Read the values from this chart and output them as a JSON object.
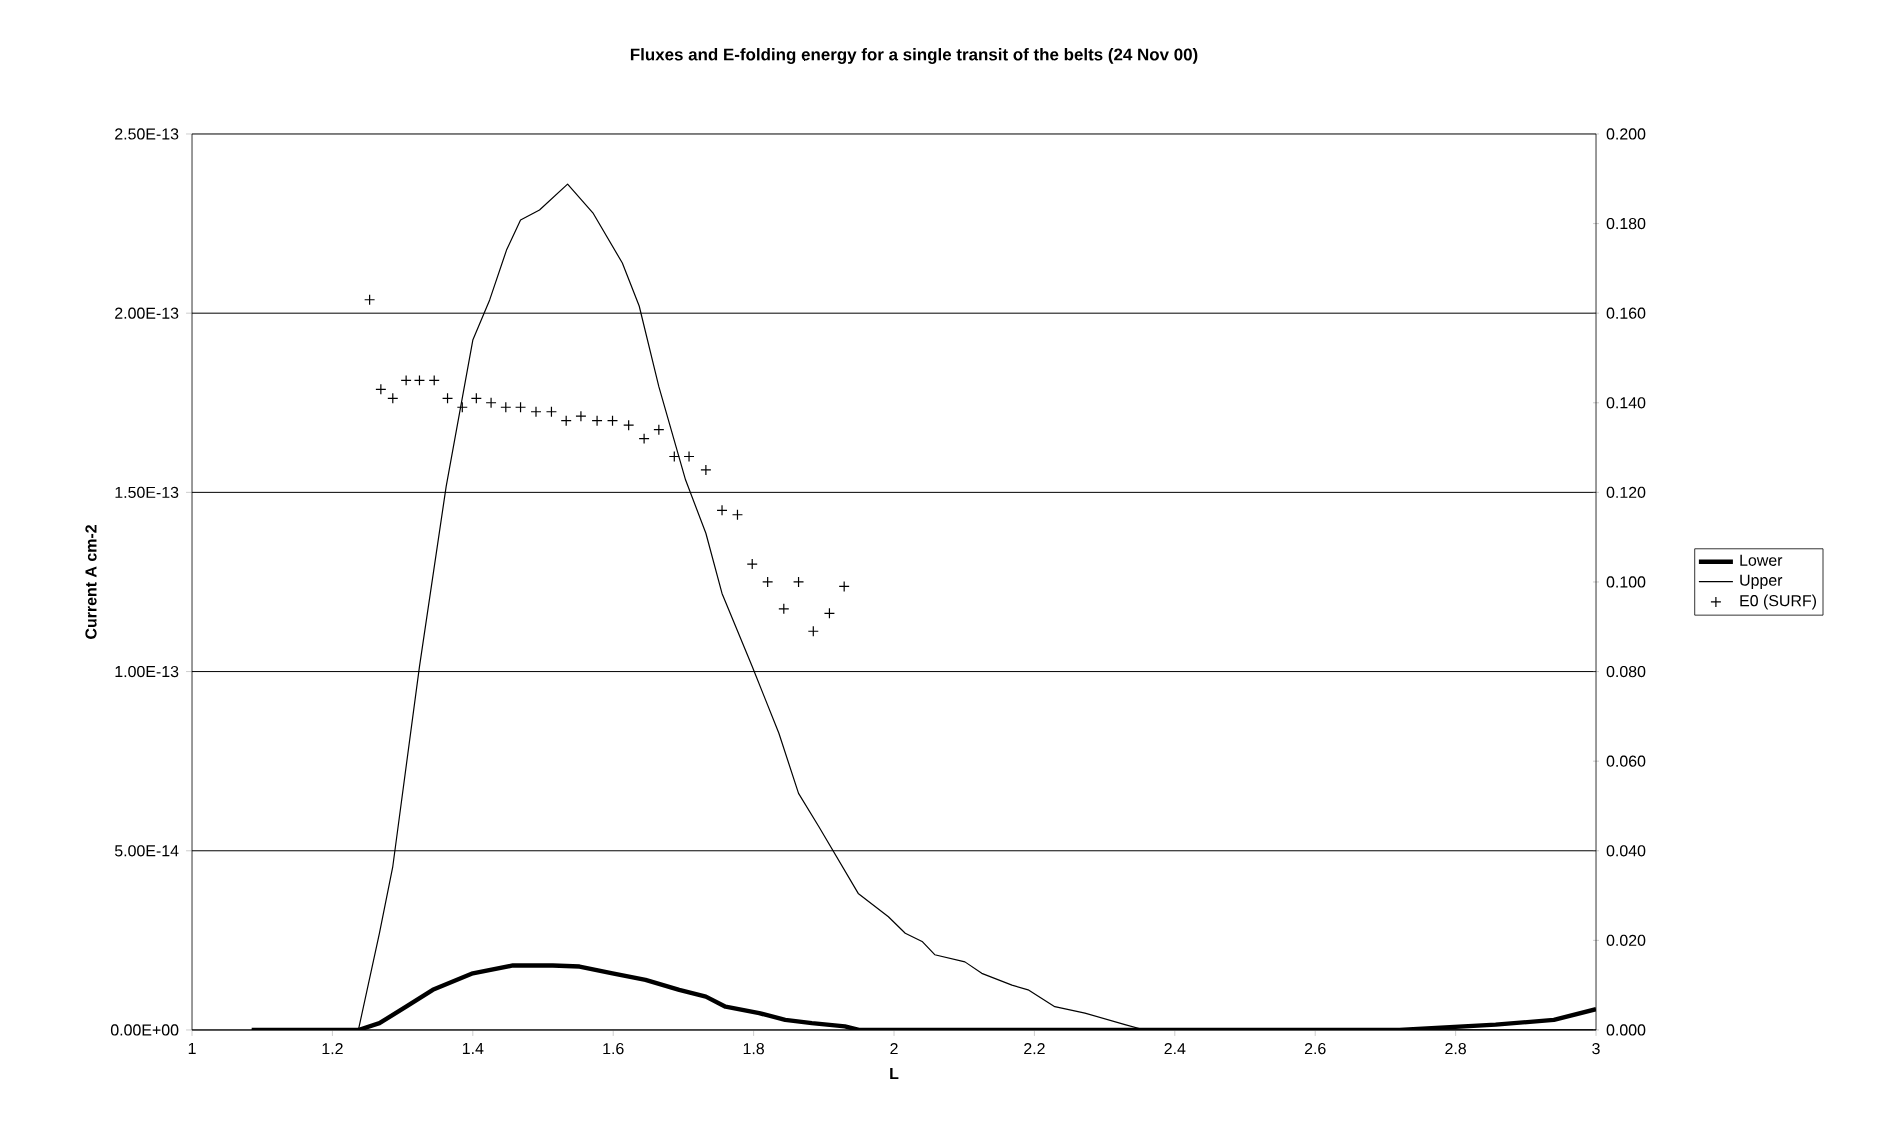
{
  "chart_data": {
    "type": "line",
    "title": "Fluxes and E-folding energy  for a single transit of the belts (24 Nov 00)",
    "xlabel": "L",
    "ylabel": "Current A cm-2",
    "xlim": [
      1,
      3
    ],
    "xticks": [
      1,
      1.2,
      1.4,
      1.6,
      1.8,
      2,
      2.2,
      2.4,
      2.6,
      2.8,
      3
    ],
    "ylim": [
      0,
      2.5e-13
    ],
    "yticks": [
      {
        "value": 0,
        "label": "0.00E+00"
      },
      {
        "value": 5e-14,
        "label": "5.00E-14"
      },
      {
        "value": 1e-13,
        "label": "1.00E-13"
      },
      {
        "value": 1.5e-13,
        "label": "1.50E-13"
      },
      {
        "value": 2e-13,
        "label": "2.00E-13"
      },
      {
        "value": 2.5e-13,
        "label": "2.50E-13"
      }
    ],
    "y2lim": [
      0,
      0.2
    ],
    "y2ticks": [
      {
        "value": 0,
        "label": "0.000"
      },
      {
        "value": 0.02,
        "label": "0.020"
      },
      {
        "value": 0.04,
        "label": "0.040"
      },
      {
        "value": 0.06,
        "label": "0.060"
      },
      {
        "value": 0.08,
        "label": "0.080"
      },
      {
        "value": 0.1,
        "label": "0.100"
      },
      {
        "value": 0.12,
        "label": "0.120"
      },
      {
        "value": 0.14,
        "label": "0.140"
      },
      {
        "value": 0.16,
        "label": "0.160"
      },
      {
        "value": 0.18,
        "label": "0.180"
      },
      {
        "value": 0.2,
        "label": "0.200"
      }
    ],
    "grid": "y",
    "legend": "right",
    "series": [
      {
        "name": "Lower",
        "color": "#000000",
        "x": [
          1.085,
          1.237,
          1.267,
          1.305,
          1.343,
          1.4,
          1.457,
          1.514,
          1.552,
          1.599,
          1.646,
          1.694,
          1.732,
          1.76,
          1.808,
          1.845,
          1.883,
          1.93,
          1.95,
          2.72,
          2.857,
          2.94,
          3.0
        ],
        "values": [
          0,
          0,
          1.9e-15,
          6.5e-15,
          1.12e-14,
          1.58e-14,
          1.8e-14,
          1.8e-14,
          1.77e-14,
          1.58e-14,
          1.4e-14,
          1.12e-14,
          9.3e-15,
          6.5e-15,
          4.7e-15,
          2.8e-15,
          1.9e-15,
          1e-15,
          0,
          0,
          1.5e-15,
          2.8e-15,
          5.8e-15
        ]
      },
      {
        "name": "Upper",
        "color": "#000000",
        "x": [
          1.085,
          1.237,
          1.267,
          1.286,
          1.324,
          1.362,
          1.4,
          1.424,
          1.448,
          1.468,
          1.495,
          1.535,
          1.571,
          1.613,
          1.637,
          1.665,
          1.703,
          1.732,
          1.755,
          1.798,
          1.836,
          1.864,
          1.893,
          1.949,
          1.992,
          2.016,
          2.04,
          2.058,
          2.101,
          2.125,
          2.168,
          2.191,
          2.229,
          2.272,
          2.329,
          2.357,
          3.0
        ],
        "values": [
          0,
          0,
          2.7e-14,
          4.56e-14,
          1.014e-13,
          1.516e-13,
          1.925e-13,
          2.037e-13,
          2.176e-13,
          2.26e-13,
          2.288e-13,
          2.36e-13,
          2.28e-13,
          2.14e-13,
          2.02e-13,
          1.795e-13,
          1.535e-13,
          1.386e-13,
          1.218e-13,
          1.014e-13,
          8.28e-14,
          6.6e-14,
          5.67e-14,
          3.81e-14,
          3.16e-14,
          2.7e-14,
          2.47e-14,
          2.1e-14,
          1.9e-14,
          1.58e-14,
          1.25e-14,
          1.12e-14,
          6.5e-15,
          4.7e-15,
          1.5e-15,
          0,
          0
        ]
      },
      {
        "name": "E0 (SURF)",
        "color": "#000000",
        "type": "scatter",
        "axis": "y2",
        "marker": "cross",
        "x": [
          1.253,
          1.269,
          1.286,
          1.305,
          1.324,
          1.345,
          1.364,
          1.385,
          1.405,
          1.426,
          1.447,
          1.468,
          1.49,
          1.512,
          1.533,
          1.554,
          1.577,
          1.599,
          1.622,
          1.644,
          1.665,
          1.687,
          1.708,
          1.732,
          1.755,
          1.777,
          1.798,
          1.82,
          1.843,
          1.864,
          1.885,
          1.908,
          1.929
        ],
        "values": [
          0.163,
          0.143,
          0.141,
          0.145,
          0.145,
          0.145,
          0.141,
          0.139,
          0.141,
          0.14,
          0.139,
          0.139,
          0.138,
          0.138,
          0.136,
          0.137,
          0.136,
          0.136,
          0.135,
          0.132,
          0.134,
          0.128,
          0.128,
          0.125,
          0.116,
          0.115,
          0.104,
          0.1,
          0.094,
          0.1,
          0.089,
          0.093,
          0.099
        ]
      }
    ]
  }
}
